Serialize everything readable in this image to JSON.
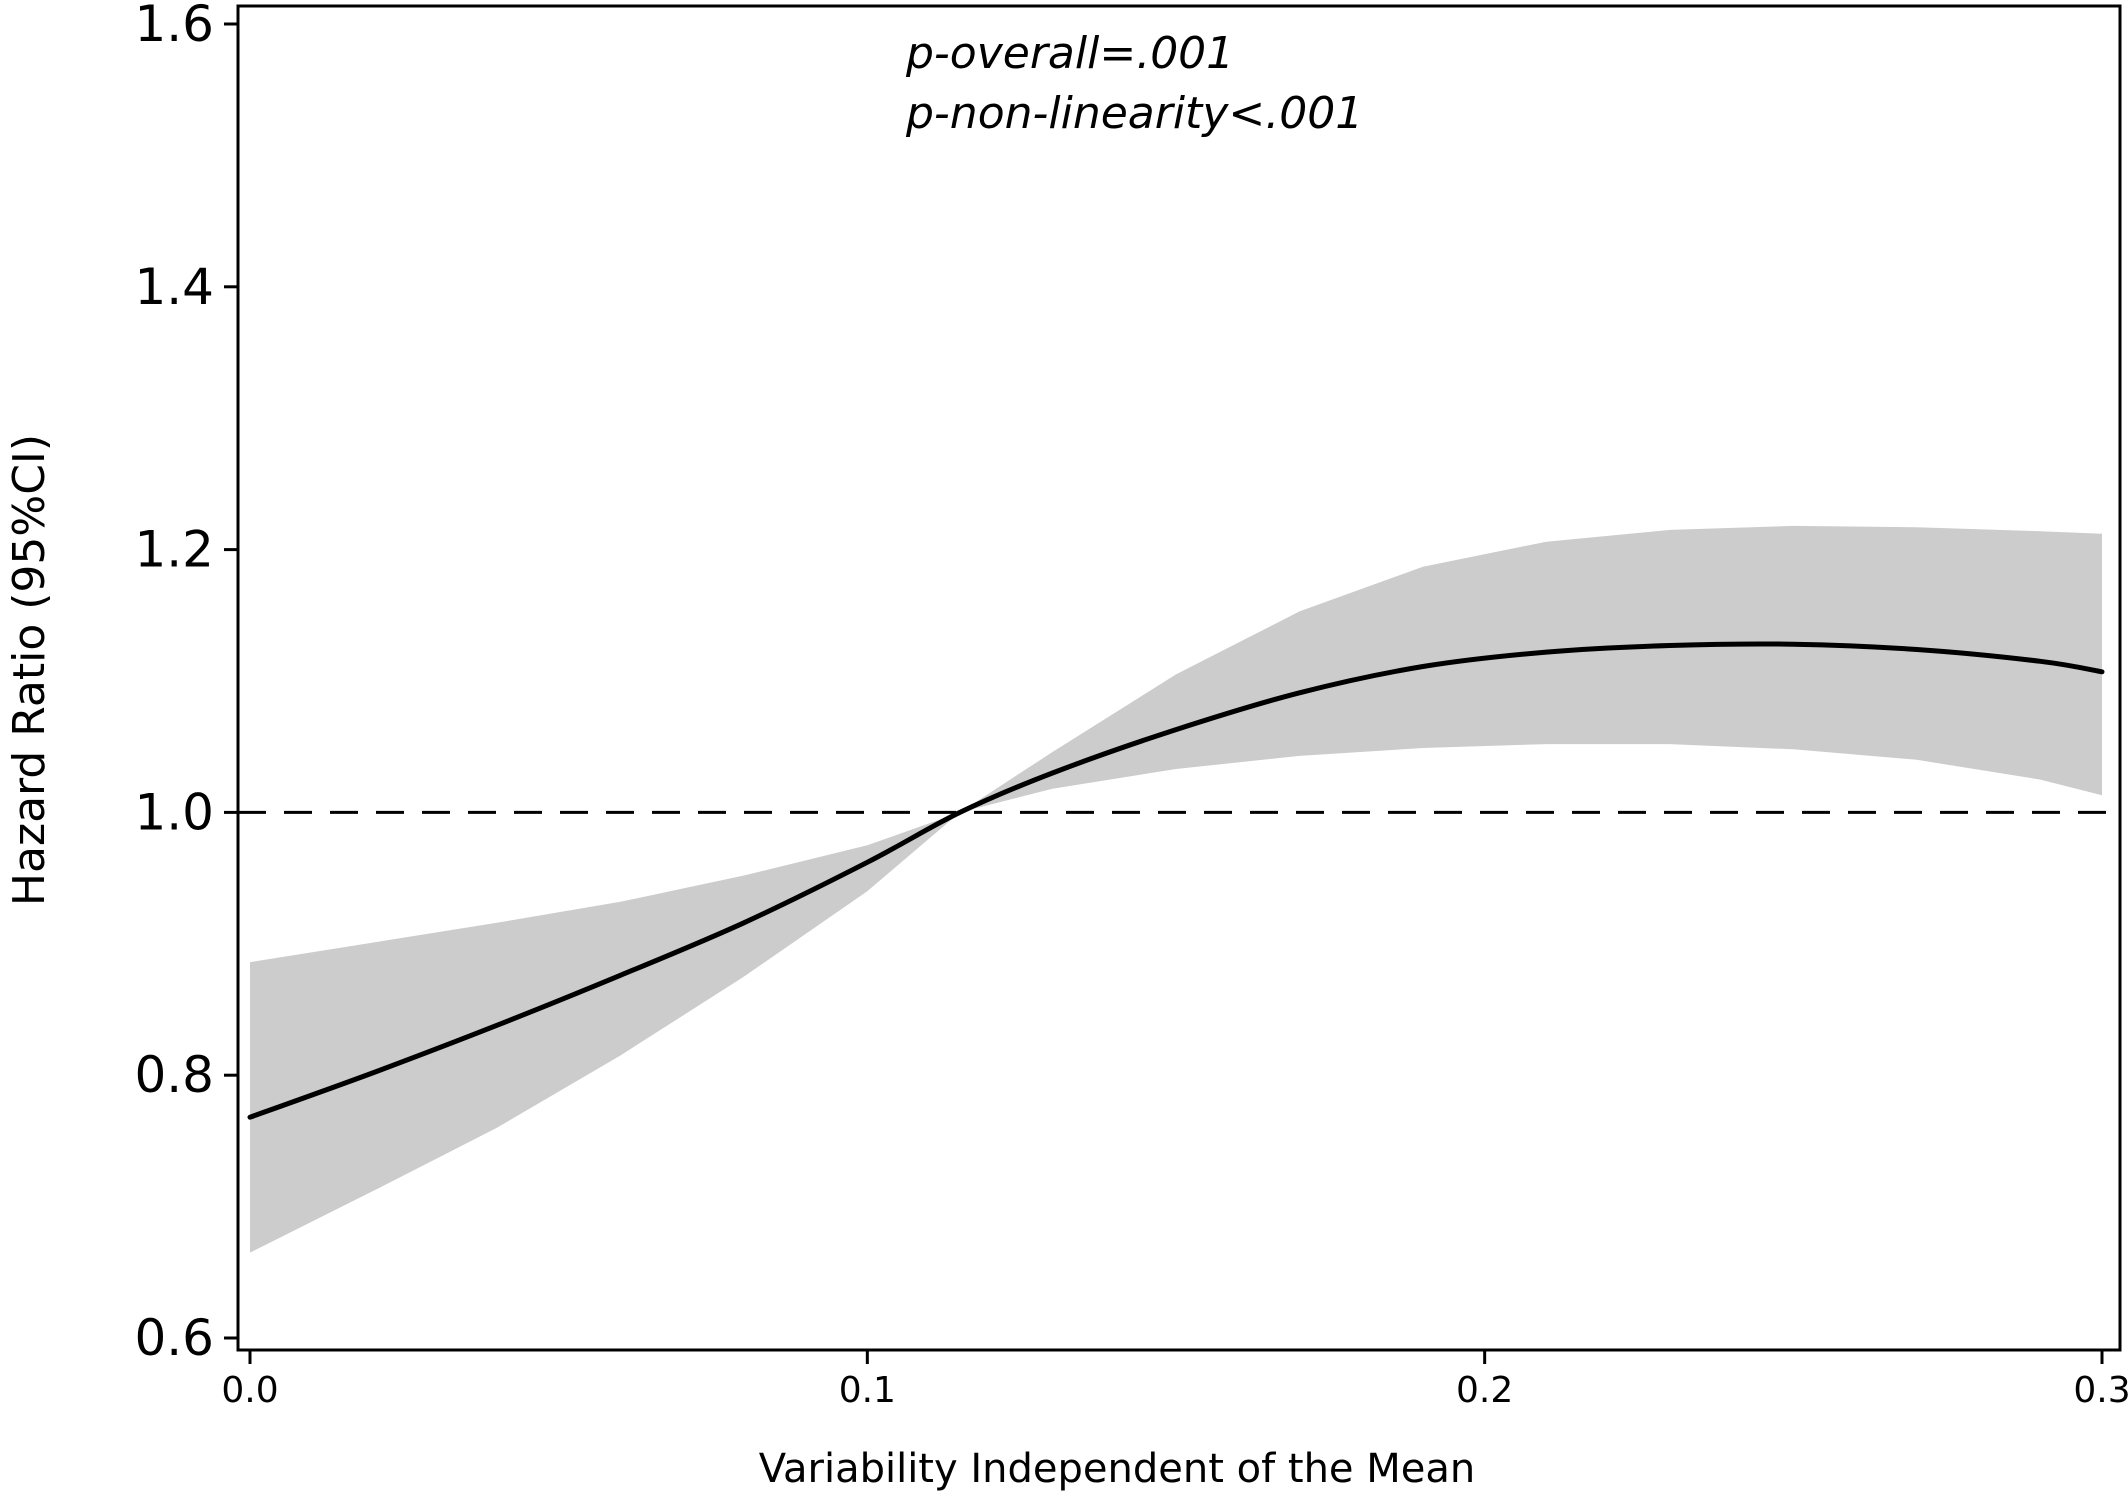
{
  "chart_data": {
    "type": "line",
    "xlabel": "Variability Independent of the Mean",
    "ylabel": "Hazard Ratio (95%CI)",
    "xlim": [
      0.0,
      0.3
    ],
    "ylim": [
      0.6,
      1.6
    ],
    "x_ticks": [
      "0.0",
      "0.1",
      "0.2",
      "0.3"
    ],
    "y_ticks": [
      "0.6",
      "0.8",
      "1.0",
      "1.2",
      "1.4",
      "1.6"
    ],
    "annotations": [
      "p-overall=.001",
      "p-non-linearity<.001"
    ],
    "reference_line": {
      "y": 1.0,
      "style": "dashed"
    },
    "band_color": "#cccccc",
    "line_color": "#000000",
    "series": [
      {
        "x": [
          0.0,
          0.02,
          0.04,
          0.06,
          0.08,
          0.1,
          0.115,
          0.13,
          0.15,
          0.17,
          0.19,
          0.21,
          0.23,
          0.25,
          0.27,
          0.29,
          0.3
        ],
        "y": [
          0.768,
          0.802,
          0.838,
          0.876,
          0.916,
          0.962,
          1.0,
          1.03,
          1.063,
          1.091,
          1.111,
          1.122,
          1.127,
          1.128,
          1.124,
          1.115,
          1.107
        ],
        "lower": [
          0.665,
          0.712,
          0.76,
          0.815,
          0.875,
          0.94,
          1.0,
          1.018,
          1.033,
          1.043,
          1.049,
          1.052,
          1.052,
          1.048,
          1.04,
          1.025,
          1.013
        ],
        "upper": [
          0.886,
          0.901,
          0.916,
          0.932,
          0.952,
          0.975,
          1.0,
          1.046,
          1.105,
          1.153,
          1.187,
          1.206,
          1.215,
          1.218,
          1.217,
          1.214,
          1.212
        ]
      }
    ]
  }
}
